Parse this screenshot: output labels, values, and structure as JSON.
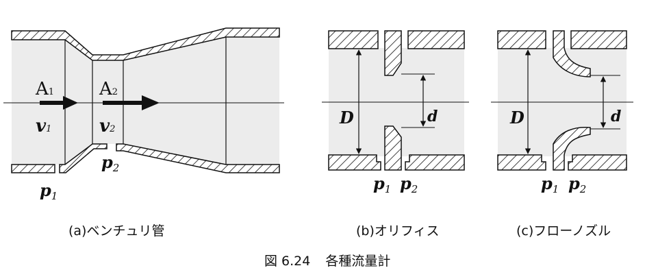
{
  "figure": {
    "number": "図 6.24",
    "title": "各種流量計"
  },
  "venturi": {
    "caption": "(a)ベンチュリ管",
    "area_1": "A",
    "area_1_sub": "1",
    "area_2": "A",
    "area_2_sub": "2",
    "velocity_1": "v",
    "velocity_1_sub": "1",
    "velocity_2": "v",
    "velocity_2_sub": "2",
    "pressure_1": "p",
    "pressure_1_sub": "1",
    "pressure_2": "p",
    "pressure_2_sub": "2"
  },
  "orifice": {
    "caption": "(b)オリフィス",
    "pipe_diameter": "D",
    "hole_diameter": "d",
    "pressure_1": "p",
    "pressure_1_sub": "1",
    "pressure_2": "p",
    "pressure_2_sub": "2"
  },
  "nozzle": {
    "caption": "(c)フローノズル",
    "pipe_diameter": "D",
    "throat_diameter": "d",
    "pressure_1": "p",
    "pressure_1_sub": "1",
    "pressure_2": "p",
    "pressure_2_sub": "2"
  },
  "colors": {
    "ink": "#111111",
    "fluid": "#ececec",
    "paper": "#ffffff"
  }
}
